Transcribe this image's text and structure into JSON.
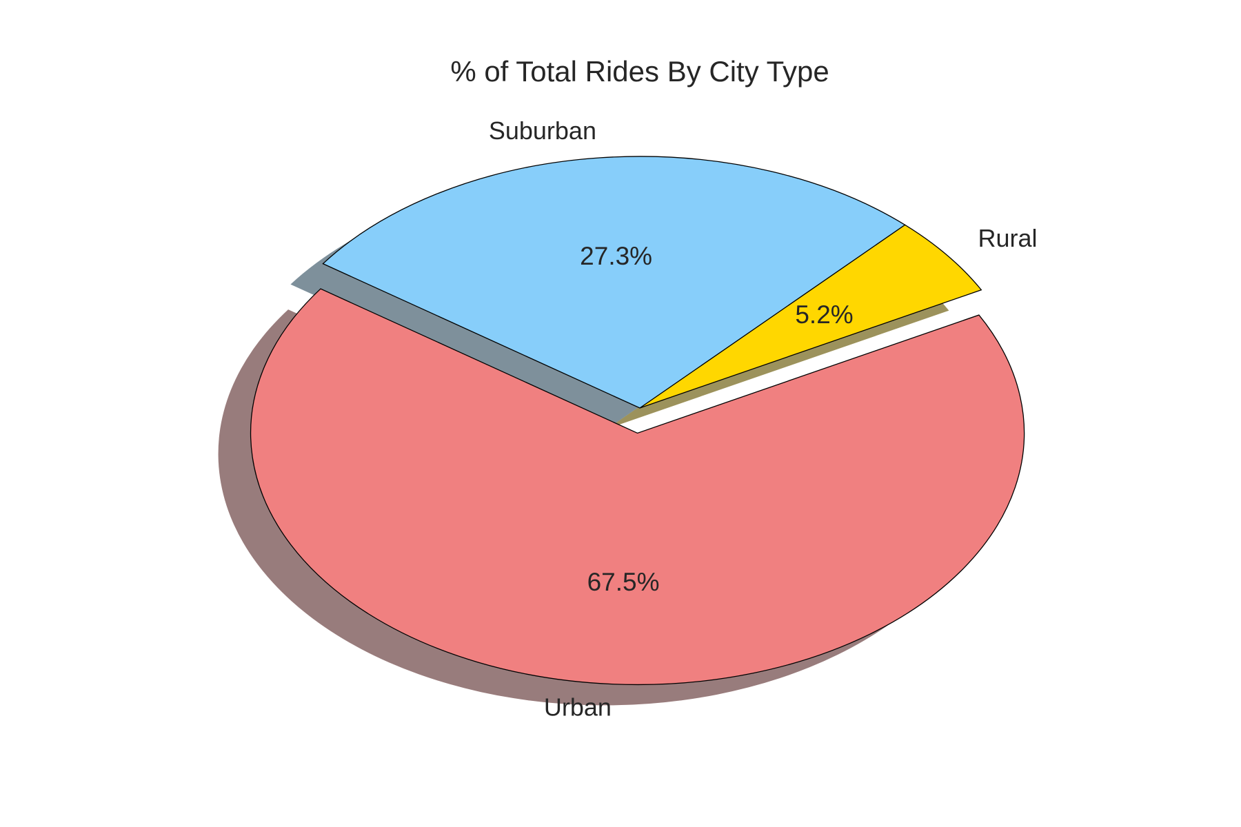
{
  "chart_data": {
    "type": "pie",
    "title": "% of Total Rides By City Type",
    "slices": [
      {
        "label": "Urban",
        "value": 67.5,
        "pct_label": "67.5%",
        "color": "#F08080",
        "exploded": true
      },
      {
        "label": "Rural",
        "value": 5.2,
        "pct_label": "5.2%",
        "color": "#FFD700",
        "exploded": false
      },
      {
        "label": "Suburban",
        "value": 27.3,
        "pct_label": "27.3%",
        "color": "#87CEFA",
        "exploded": false
      }
    ],
    "start_angle_deg": 145,
    "shadow": true,
    "edge_color": "#000000"
  }
}
